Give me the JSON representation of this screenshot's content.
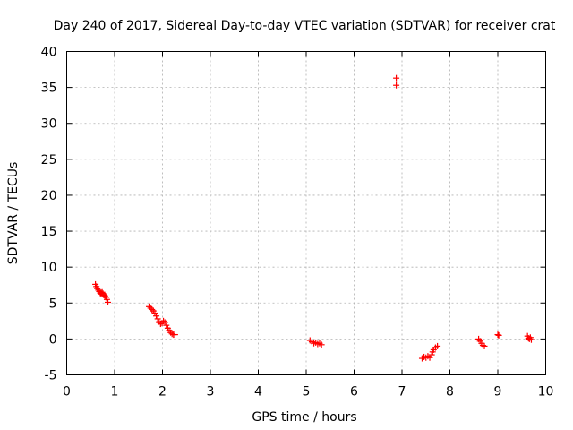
{
  "chart_data": {
    "type": "scatter",
    "title": "Day 240 of 2017, Sidereal Day-to-day VTEC variation (SDTVAR) for receiver crat",
    "xlabel": "GPS time / hours",
    "ylabel": "SDTVAR / TECUs",
    "xlim": [
      0,
      10
    ],
    "ylim": [
      -5,
      40
    ],
    "xticks": [
      0,
      1,
      2,
      3,
      4,
      5,
      6,
      7,
      8,
      9,
      10
    ],
    "yticks": [
      -5,
      0,
      5,
      10,
      15,
      20,
      25,
      30,
      35,
      40
    ],
    "grid": true,
    "marker": "+",
    "color": "#ff0000",
    "series": [
      {
        "name": "SDTVAR",
        "points": [
          [
            0.6,
            7.6
          ],
          [
            0.62,
            7.3
          ],
          [
            0.64,
            7.0
          ],
          [
            0.66,
            6.8
          ],
          [
            0.68,
            6.6
          ],
          [
            0.7,
            6.4
          ],
          [
            0.72,
            6.3
          ],
          [
            0.74,
            6.5
          ],
          [
            0.76,
            6.3
          ],
          [
            0.78,
            6.1
          ],
          [
            0.8,
            6.0
          ],
          [
            0.82,
            5.8
          ],
          [
            0.84,
            5.5
          ],
          [
            0.86,
            5.1
          ],
          [
            1.72,
            4.5
          ],
          [
            1.75,
            4.3
          ],
          [
            1.78,
            4.1
          ],
          [
            1.81,
            3.9
          ],
          [
            1.84,
            3.6
          ],
          [
            1.87,
            3.2
          ],
          [
            1.9,
            2.8
          ],
          [
            1.93,
            2.4
          ],
          [
            1.96,
            2.1
          ],
          [
            1.99,
            2.2
          ],
          [
            2.02,
            2.5
          ],
          [
            2.05,
            2.3
          ],
          [
            2.08,
            1.9
          ],
          [
            2.11,
            1.5
          ],
          [
            2.14,
            1.2
          ],
          [
            2.17,
            0.9
          ],
          [
            2.2,
            0.7
          ],
          [
            2.23,
            0.6
          ],
          [
            2.26,
            0.6
          ],
          [
            5.08,
            -0.2
          ],
          [
            5.12,
            -0.4
          ],
          [
            5.16,
            -0.6
          ],
          [
            5.2,
            -0.5
          ],
          [
            5.24,
            -0.7
          ],
          [
            5.28,
            -0.6
          ],
          [
            5.32,
            -0.8
          ],
          [
            6.88,
            36.3
          ],
          [
            6.88,
            35.3
          ],
          [
            7.42,
            -2.7
          ],
          [
            7.46,
            -2.5
          ],
          [
            7.5,
            -2.6
          ],
          [
            7.54,
            -2.4
          ],
          [
            7.58,
            -2.6
          ],
          [
            7.62,
            -2.2
          ],
          [
            7.64,
            -1.8
          ],
          [
            7.66,
            -1.5
          ],
          [
            7.7,
            -1.2
          ],
          [
            7.74,
            -1.0
          ],
          [
            8.6,
            0.0
          ],
          [
            8.63,
            -0.3
          ],
          [
            8.66,
            -0.6
          ],
          [
            8.69,
            -0.9
          ],
          [
            8.72,
            -1.0
          ],
          [
            9.0,
            0.6
          ],
          [
            9.02,
            0.5
          ],
          [
            9.62,
            0.4
          ],
          [
            9.64,
            0.1
          ],
          [
            9.66,
            0.0
          ],
          [
            9.68,
            0.2
          ],
          [
            9.7,
            -0.1
          ]
        ]
      }
    ]
  }
}
